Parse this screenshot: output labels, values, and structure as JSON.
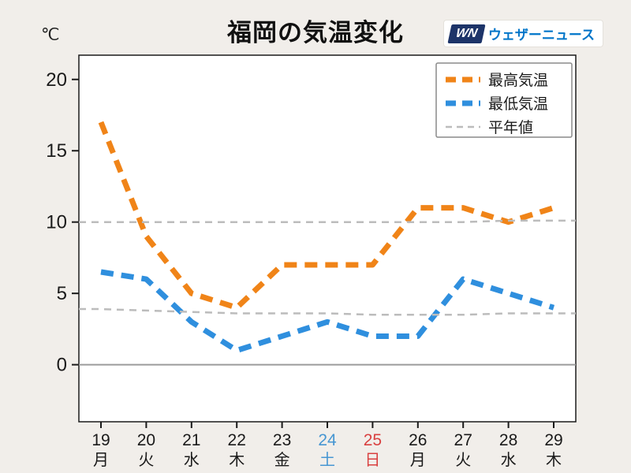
{
  "title": "福岡の気温変化",
  "unit": "℃",
  "logo": {
    "mark": "WN",
    "text": "ウェザーニュース"
  },
  "colors": {
    "background": "#f1eeea",
    "plot_background": "#ffffff",
    "plot_border": "#1a1a1a",
    "max_temp": "#f08418",
    "min_temp": "#2f8fde",
    "normal": "#bcbcbc",
    "zero_line": "#9b9b9b",
    "weekday": "#1a1a1a",
    "saturday": "#4696d2",
    "sunday": "#d94040",
    "legend_border": "#8a8a8a",
    "logo_navy": "#1d3469",
    "logo_blue": "#0075c9"
  },
  "chart_data": {
    "type": "line",
    "title": "福岡の気温変化",
    "ylabel": "℃",
    "ylim": [
      -4,
      21.7
    ],
    "yticks": [
      0,
      5,
      10,
      15,
      20
    ],
    "x": [
      19,
      20,
      21,
      22,
      23,
      24,
      25,
      26,
      27,
      28,
      29
    ],
    "x_labels_day": [
      "19",
      "20",
      "21",
      "22",
      "23",
      "24",
      "25",
      "26",
      "27",
      "28",
      "29"
    ],
    "x_labels_weekday": [
      "月",
      "火",
      "水",
      "木",
      "金",
      "土",
      "日",
      "月",
      "火",
      "水",
      "木"
    ],
    "x_label_types": [
      "weekday",
      "weekday",
      "weekday",
      "weekday",
      "weekday",
      "saturday",
      "sunday",
      "weekday",
      "weekday",
      "weekday",
      "weekday"
    ],
    "grid": false,
    "legend_position": "top-right",
    "series": [
      {
        "id": "max-temp-line",
        "name": "最高気温",
        "color": "#f08418",
        "width": 7,
        "dash": "16 10",
        "extend": false,
        "values": [
          17,
          9,
          5,
          4,
          7,
          7,
          7,
          11,
          11,
          10,
          11
        ]
      },
      {
        "id": "min-temp-line",
        "name": "最低気温",
        "color": "#2f8fde",
        "width": 7,
        "dash": "16 10",
        "extend": false,
        "values": [
          6.5,
          6,
          3,
          1,
          2,
          3,
          2,
          2,
          6,
          5,
          4
        ]
      },
      {
        "id": "normal-max-line",
        "name": "平年値(最高)",
        "color": "#bcbcbc",
        "width": 2.5,
        "dash": "9 7",
        "extend": true,
        "values": [
          10,
          10,
          10,
          10,
          10,
          10,
          10,
          10,
          10,
          10.1,
          10.1
        ]
      },
      {
        "id": "normal-min-line",
        "name": "平年値(最低)",
        "color": "#bcbcbc",
        "width": 2.5,
        "dash": "9 7",
        "extend": true,
        "values": [
          3.9,
          3.8,
          3.7,
          3.6,
          3.6,
          3.6,
          3.5,
          3.5,
          3.5,
          3.6,
          3.6
        ]
      }
    ],
    "legend": [
      {
        "label": "最高気温",
        "color": "#f08418",
        "width": 7,
        "dash": "13 8"
      },
      {
        "label": "最低気温",
        "color": "#2f8fde",
        "width": 7,
        "dash": "13 8"
      },
      {
        "label": "平年値",
        "color": "#bcbcbc",
        "width": 2.5,
        "dash": "8 6"
      }
    ]
  }
}
